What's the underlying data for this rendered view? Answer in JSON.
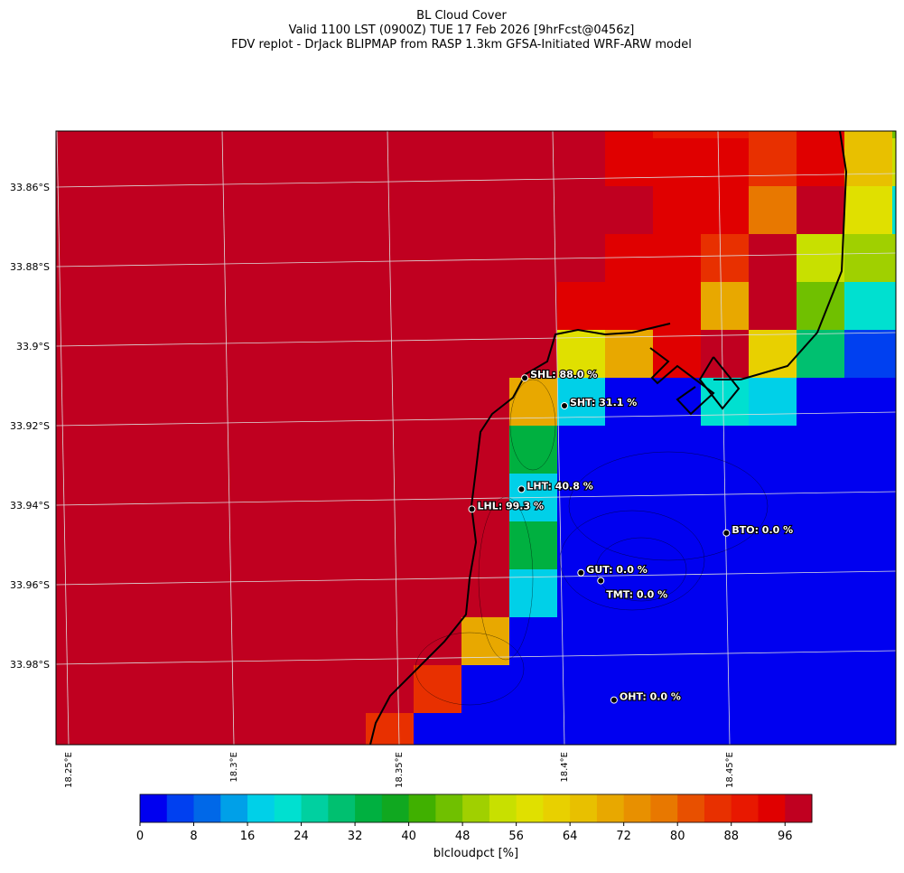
{
  "header": {
    "title": "BL Cloud Cover",
    "subtitle": "Valid 1100 LST (0900Z) TUE 17 Feb 2026 [9hrFcst@0456z]",
    "source": "FDV replot - DrJack BLIPMAP from RASP 1.3km GFSA-Initiated WRF-ARW model"
  },
  "map": {
    "lat_ticks": [
      {
        "value": -33.86,
        "label": "33.86°S"
      },
      {
        "value": -33.88,
        "label": "33.88°S"
      },
      {
        "value": -33.9,
        "label": "33.9°S"
      },
      {
        "value": -33.92,
        "label": "33.92°S"
      },
      {
        "value": -33.94,
        "label": "33.94°S"
      },
      {
        "value": -33.96,
        "label": "33.96°S"
      },
      {
        "value": -33.98,
        "label": "33.98°S"
      }
    ],
    "lon_ticks": [
      {
        "value": 18.25,
        "label": "18.25°E"
      },
      {
        "value": 18.3,
        "label": "18.3°E"
      },
      {
        "value": 18.35,
        "label": "18.35°E"
      },
      {
        "value": 18.4,
        "label": "18.4°E"
      },
      {
        "value": 18.45,
        "label": "18.45°E"
      }
    ],
    "grid": [
      [
        98,
        98,
        98,
        98,
        98,
        98,
        98,
        98,
        98,
        98,
        98,
        98,
        92,
        89,
        89,
        86,
        93,
        65,
        45
      ],
      [
        98,
        98,
        98,
        98,
        98,
        98,
        98,
        98,
        98,
        98,
        98,
        98,
        92,
        92,
        92,
        86,
        93,
        65,
        55
      ],
      [
        98,
        98,
        98,
        98,
        98,
        98,
        98,
        98,
        98,
        98,
        98,
        98,
        98,
        93,
        93,
        77,
        98,
        58,
        20
      ],
      [
        98,
        98,
        98,
        98,
        98,
        98,
        98,
        98,
        98,
        98,
        98,
        98,
        93,
        93,
        85,
        98,
        54,
        49,
        49
      ],
      [
        98,
        98,
        98,
        98,
        98,
        98,
        98,
        98,
        98,
        98,
        98,
        93,
        93,
        93,
        70,
        98,
        47,
        22,
        22
      ],
      [
        98,
        98,
        98,
        98,
        98,
        98,
        98,
        98,
        98,
        98,
        98,
        58,
        68,
        92,
        98,
        63,
        30,
        5,
        5
      ],
      [
        98,
        98,
        98,
        98,
        98,
        98,
        98,
        98,
        98,
        98,
        68,
        18,
        0,
        0,
        22,
        17,
        0,
        0,
        0
      ],
      [
        98,
        98,
        98,
        98,
        98,
        98,
        98,
        98,
        98,
        98,
        35,
        0,
        0,
        0,
        0,
        0,
        0,
        0,
        0
      ],
      [
        98,
        98,
        98,
        98,
        98,
        98,
        98,
        98,
        98,
        98,
        17,
        0,
        0,
        0,
        0,
        0,
        0,
        0,
        0
      ],
      [
        98,
        98,
        98,
        98,
        98,
        98,
        98,
        98,
        98,
        98,
        35,
        0,
        0,
        0,
        0,
        0,
        0,
        0,
        0
      ],
      [
        98,
        98,
        98,
        98,
        98,
        98,
        98,
        98,
        98,
        98,
        17,
        0,
        0,
        0,
        0,
        0,
        0,
        0,
        0
      ],
      [
        98,
        98,
        98,
        98,
        98,
        98,
        98,
        98,
        98,
        68,
        0,
        0,
        0,
        0,
        0,
        0,
        0,
        0,
        0
      ],
      [
        98,
        98,
        98,
        98,
        98,
        98,
        98,
        98,
        85,
        0,
        0,
        0,
        0,
        0,
        0,
        0,
        0,
        0,
        0
      ],
      [
        98,
        98,
        98,
        98,
        98,
        98,
        98,
        84,
        0,
        0,
        0,
        0,
        0,
        0,
        0,
        0,
        0,
        0,
        0
      ]
    ],
    "stations": [
      {
        "label": "SHL: 88.0 %",
        "lon": 18.388,
        "lat": -33.908
      },
      {
        "label": "SHT: 31.1 %",
        "lon": 18.4,
        "lat": -33.915
      },
      {
        "label": "LHT: 40.8 %",
        "lon": 18.387,
        "lat": -33.936
      },
      {
        "label": "LHL: 99.3 %",
        "lon": 18.372,
        "lat": -33.941
      },
      {
        "label": "BTO: 0.0 %",
        "lon": 18.449,
        "lat": -33.947
      },
      {
        "label": "GUT: 0.0 %",
        "lon": 18.405,
        "lat": -33.957
      },
      {
        "label": "TMT: 0.0 %",
        "lon": 18.411,
        "lat": -33.959
      },
      {
        "label": "OHT: 0.0 %",
        "lon": 18.415,
        "lat": -33.989
      }
    ]
  },
  "colorbar": {
    "label": "blcloudpct [%]",
    "lim": [
      0,
      100
    ],
    "step": 4,
    "ticks": [
      0,
      8,
      16,
      24,
      32,
      40,
      48,
      56,
      64,
      72,
      80,
      88,
      96
    ],
    "colors": [
      "#0000f0",
      "#0040f0",
      "#0068e8",
      "#00a0e8",
      "#00d0e8",
      "#00e0d0",
      "#00d0a0",
      "#00c070",
      "#00b040",
      "#10a820",
      "#40b000",
      "#70c000",
      "#a0d000",
      "#c8e000",
      "#e0e000",
      "#e8d000",
      "#e8c000",
      "#e8a800",
      "#e89000",
      "#e87800",
      "#e85000",
      "#e83000",
      "#e81800",
      "#e00000",
      "#c00020"
    ]
  }
}
